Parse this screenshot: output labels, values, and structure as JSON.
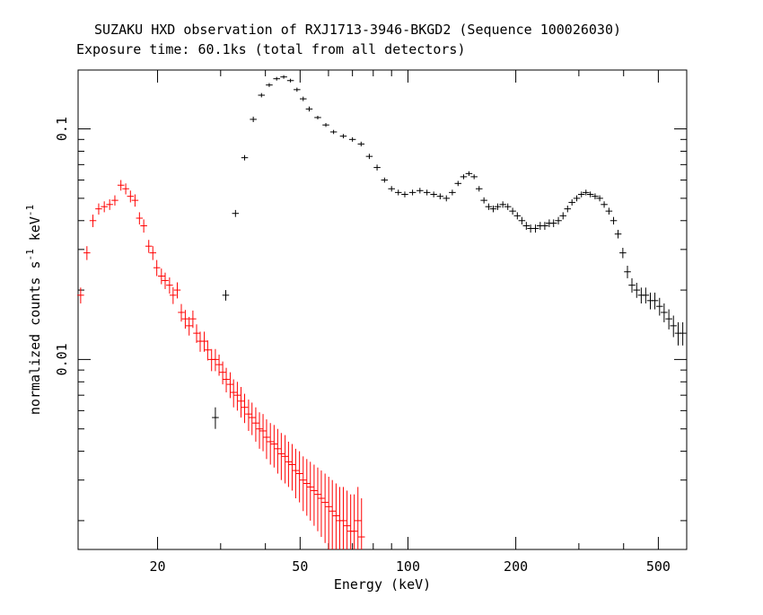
{
  "chart_data": {
    "type": "scatter",
    "title": "SUZAKU HXD observation of RXJ1713-3946-BKGD2 (Sequence 100026030)",
    "subtitle": "Exposure time: 60.1ks (total from all detectors)",
    "xlabel": "Energy (keV)",
    "ylabel_main": "normalized counts s",
    "ylabel_sup1": "-1",
    "ylabel_mid": " keV",
    "ylabel_sup2": "-1",
    "x_scale": "log",
    "y_scale": "log",
    "xlim": [
      12,
      600
    ],
    "ylim": [
      0.0015,
      0.18
    ],
    "x_ticks": [
      20,
      50,
      100,
      200,
      500
    ],
    "x_tick_labels": [
      "20",
      "50",
      "100",
      "200",
      "500"
    ],
    "y_ticks": [
      0.01,
      0.1
    ],
    "y_tick_labels": [
      "0.01",
      "0.1"
    ],
    "grid": false,
    "legend": "none",
    "series": [
      {
        "color": "#ff0000",
        "points": [
          [
            12.2,
            0.019,
            0.0015
          ],
          [
            12.7,
            0.029,
            0.002
          ],
          [
            13.2,
            0.04,
            0.0025
          ],
          [
            13.7,
            0.045,
            0.0025
          ],
          [
            14.2,
            0.046,
            0.0025
          ],
          [
            14.7,
            0.047,
            0.0025
          ],
          [
            15.2,
            0.049,
            0.0025
          ],
          [
            15.8,
            0.057,
            0.003
          ],
          [
            16.3,
            0.055,
            0.003
          ],
          [
            16.8,
            0.051,
            0.003
          ],
          [
            17.3,
            0.049,
            0.003
          ],
          [
            17.8,
            0.041,
            0.0025
          ],
          [
            18.3,
            0.038,
            0.0025
          ],
          [
            18.9,
            0.031,
            0.002
          ],
          [
            19.4,
            0.029,
            0.002
          ],
          [
            19.9,
            0.025,
            0.002
          ],
          [
            20.5,
            0.023,
            0.0018
          ],
          [
            21.0,
            0.022,
            0.0018
          ],
          [
            21.6,
            0.021,
            0.0017
          ],
          [
            22.1,
            0.019,
            0.0016
          ],
          [
            22.7,
            0.02,
            0.0016
          ],
          [
            23.3,
            0.016,
            0.0014
          ],
          [
            23.9,
            0.015,
            0.0014
          ],
          [
            24.5,
            0.014,
            0.0013
          ],
          [
            25.1,
            0.015,
            0.0013
          ],
          [
            25.7,
            0.013,
            0.0012
          ],
          [
            26.3,
            0.012,
            0.0012
          ],
          [
            27.0,
            0.012,
            0.0012
          ],
          [
            27.6,
            0.011,
            0.0011
          ],
          [
            28.3,
            0.01,
            0.0011
          ],
          [
            29.0,
            0.01,
            0.0011
          ],
          [
            29.7,
            0.0095,
            0.001
          ],
          [
            30.4,
            0.0088,
            0.001
          ],
          [
            31.1,
            0.0082,
            0.001
          ],
          [
            31.9,
            0.0078,
            0.001
          ],
          [
            32.6,
            0.0072,
            0.001
          ],
          [
            33.4,
            0.007,
            0.001
          ],
          [
            34.2,
            0.0066,
            0.001
          ],
          [
            35.0,
            0.0062,
            0.0009
          ],
          [
            35.9,
            0.0058,
            0.0009
          ],
          [
            36.7,
            0.0056,
            0.0009
          ],
          [
            37.6,
            0.0053,
            0.0009
          ],
          [
            38.5,
            0.005,
            0.0009
          ],
          [
            39.4,
            0.0049,
            0.0009
          ],
          [
            40.3,
            0.0046,
            0.0009
          ],
          [
            41.3,
            0.0044,
            0.0009
          ],
          [
            42.3,
            0.0043,
            0.0009
          ],
          [
            43.3,
            0.0041,
            0.0009
          ],
          [
            44.3,
            0.0039,
            0.0009
          ],
          [
            45.4,
            0.0038,
            0.0009
          ],
          [
            46.4,
            0.0036,
            0.0008
          ],
          [
            47.5,
            0.0035,
            0.0008
          ],
          [
            48.6,
            0.0033,
            0.0008
          ],
          [
            49.8,
            0.0032,
            0.0008
          ],
          [
            51.0,
            0.003,
            0.0008
          ],
          [
            52.2,
            0.0029,
            0.0008
          ],
          [
            53.4,
            0.0028,
            0.0008
          ],
          [
            54.7,
            0.0027,
            0.0008
          ],
          [
            56.0,
            0.0026,
            0.0008
          ],
          [
            57.3,
            0.0025,
            0.0008
          ],
          [
            58.7,
            0.0024,
            0.0008
          ],
          [
            60.1,
            0.0023,
            0.0008
          ],
          [
            61.5,
            0.0022,
            0.0008
          ],
          [
            63.0,
            0.0021,
            0.0008
          ],
          [
            64.5,
            0.002,
            0.0008
          ],
          [
            66.0,
            0.002,
            0.0008
          ],
          [
            67.6,
            0.0019,
            0.0008
          ],
          [
            69.2,
            0.0018,
            0.0008
          ],
          [
            70.8,
            0.0018,
            0.0008
          ],
          [
            72.5,
            0.002,
            0.0008
          ],
          [
            74.2,
            0.0017,
            0.0008
          ]
        ]
      },
      {
        "color": "#000000",
        "points": [
          [
            29.0,
            0.0056,
            0.0006
          ],
          [
            31.0,
            0.019,
            0.001
          ],
          [
            33.0,
            0.043,
            0.0015
          ],
          [
            35.0,
            0.075,
            0.002
          ],
          [
            37.0,
            0.11,
            0.003
          ],
          [
            39.0,
            0.14,
            0.003
          ],
          [
            41.0,
            0.155,
            0.003
          ],
          [
            43.0,
            0.165,
            0.003
          ],
          [
            45.0,
            0.168,
            0.003
          ],
          [
            47.0,
            0.162,
            0.003
          ],
          [
            49.0,
            0.148,
            0.003
          ],
          [
            51.0,
            0.135,
            0.003
          ],
          [
            53.0,
            0.122,
            0.003
          ],
          [
            56.0,
            0.112,
            0.002
          ],
          [
            59.0,
            0.104,
            0.002
          ],
          [
            62.0,
            0.097,
            0.002
          ],
          [
            66.0,
            0.093,
            0.002
          ],
          [
            70.0,
            0.09,
            0.002
          ],
          [
            74.0,
            0.086,
            0.002
          ],
          [
            78.0,
            0.076,
            0.002
          ],
          [
            82.0,
            0.068,
            0.002
          ],
          [
            86.0,
            0.06,
            0.0015
          ],
          [
            90.0,
            0.055,
            0.0015
          ],
          [
            94.0,
            0.053,
            0.0015
          ],
          [
            98.0,
            0.052,
            0.0015
          ],
          [
            103.0,
            0.053,
            0.0015
          ],
          [
            108.0,
            0.054,
            0.0015
          ],
          [
            113.0,
            0.053,
            0.0015
          ],
          [
            118.0,
            0.052,
            0.0015
          ],
          [
            123.0,
            0.051,
            0.0015
          ],
          [
            128.0,
            0.05,
            0.0015
          ],
          [
            133.0,
            0.053,
            0.0015
          ],
          [
            138.0,
            0.058,
            0.0015
          ],
          [
            143.0,
            0.062,
            0.0015
          ],
          [
            148.0,
            0.064,
            0.0015
          ],
          [
            153.0,
            0.062,
            0.0015
          ],
          [
            158.0,
            0.055,
            0.0015
          ],
          [
            163.0,
            0.049,
            0.0015
          ],
          [
            168.0,
            0.046,
            0.0015
          ],
          [
            173.0,
            0.045,
            0.0015
          ],
          [
            178.0,
            0.046,
            0.0015
          ],
          [
            184.0,
            0.047,
            0.0015
          ],
          [
            190.0,
            0.046,
            0.0015
          ],
          [
            196.0,
            0.044,
            0.0015
          ],
          [
            202.0,
            0.042,
            0.0015
          ],
          [
            208.0,
            0.04,
            0.0015
          ],
          [
            214.0,
            0.038,
            0.0015
          ],
          [
            220.0,
            0.037,
            0.0015
          ],
          [
            227.0,
            0.037,
            0.0015
          ],
          [
            234.0,
            0.038,
            0.0015
          ],
          [
            241.0,
            0.038,
            0.0015
          ],
          [
            248.0,
            0.039,
            0.0015
          ],
          [
            255.0,
            0.039,
            0.0015
          ],
          [
            263.0,
            0.04,
            0.0015
          ],
          [
            271.0,
            0.042,
            0.0015
          ],
          [
            279.0,
            0.045,
            0.0015
          ],
          [
            287.0,
            0.048,
            0.0015
          ],
          [
            296.0,
            0.05,
            0.0015
          ],
          [
            305.0,
            0.052,
            0.0015
          ],
          [
            314.0,
            0.053,
            0.0015
          ],
          [
            323.0,
            0.052,
            0.0015
          ],
          [
            333.0,
            0.051,
            0.0015
          ],
          [
            343.0,
            0.05,
            0.0015
          ],
          [
            353.0,
            0.047,
            0.0015
          ],
          [
            364.0,
            0.044,
            0.0015
          ],
          [
            375.0,
            0.04,
            0.0015
          ],
          [
            386.0,
            0.035,
            0.0015
          ],
          [
            398.0,
            0.029,
            0.0015
          ],
          [
            410.0,
            0.024,
            0.0015
          ],
          [
            422.0,
            0.021,
            0.0015
          ],
          [
            435.0,
            0.02,
            0.0015
          ],
          [
            448.0,
            0.019,
            0.0015
          ],
          [
            461.0,
            0.019,
            0.0015
          ],
          [
            475.0,
            0.018,
            0.0015
          ],
          [
            489.0,
            0.018,
            0.0015
          ],
          [
            504.0,
            0.017,
            0.0015
          ],
          [
            519.0,
            0.016,
            0.0015
          ],
          [
            535.0,
            0.015,
            0.0015
          ],
          [
            551.0,
            0.014,
            0.0015
          ],
          [
            568.0,
            0.013,
            0.0015
          ],
          [
            585.0,
            0.013,
            0.0015
          ]
        ]
      }
    ]
  }
}
